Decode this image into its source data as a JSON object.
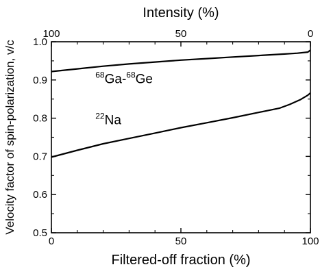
{
  "chart_data": {
    "type": "line",
    "xlabel": "Filtered-off fraction (%)",
    "x2label": "Intensity (%)",
    "ylabel": "Velocity factor of spin-polarization, v/c",
    "xlim": [
      0,
      100
    ],
    "x2lim": [
      100,
      0
    ],
    "ylim": [
      0.5,
      1.0
    ],
    "xticks": [
      0,
      50,
      100
    ],
    "x2ticks": [
      100,
      50,
      0
    ],
    "yticks": [
      0.5,
      0.6,
      0.7,
      0.8,
      0.9,
      1.0
    ],
    "xtick_labels": [
      "0",
      "50",
      "100"
    ],
    "x2tick_labels": [
      "100",
      "50",
      "0"
    ],
    "ytick_labels": [
      "0.5",
      "0.6",
      "0.7",
      "0.8",
      "0.9",
      "1.0"
    ],
    "grid": false,
    "series": [
      {
        "name": "68Ga-68Ge",
        "x": [
          0,
          10,
          20,
          30,
          40,
          50,
          60,
          70,
          80,
          90,
          95,
          99,
          100
        ],
        "y": [
          0.922,
          0.929,
          0.936,
          0.942,
          0.947,
          0.952,
          0.956,
          0.96,
          0.964,
          0.968,
          0.97,
          0.973,
          0.978
        ]
      },
      {
        "name": "22Na",
        "x": [
          0,
          10,
          20,
          30,
          40,
          50,
          60,
          70,
          80,
          88,
          92,
          96,
          99,
          100
        ],
        "y": [
          0.698,
          0.716,
          0.733,
          0.747,
          0.761,
          0.775,
          0.788,
          0.801,
          0.815,
          0.826,
          0.836,
          0.848,
          0.86,
          0.866
        ]
      }
    ],
    "annotations": [
      {
        "name": "ga-label",
        "sup1": "68",
        "base1": "Ga-",
        "sup2": "68",
        "base2": "Ge",
        "at": [
          17,
          0.892
        ]
      },
      {
        "name": "na-label",
        "sup1": "22",
        "base1": "Na",
        "at": [
          17,
          0.784
        ]
      }
    ]
  }
}
